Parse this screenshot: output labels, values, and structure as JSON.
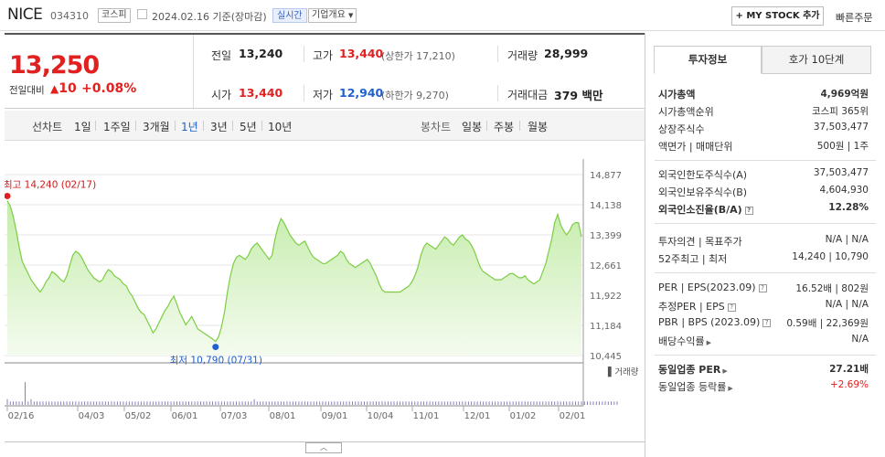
{
  "header": {
    "name": "NICE",
    "code": "034310",
    "market": "코스피",
    "date_text": "2024.02.16 기준(장마감)",
    "live_label": "실시간",
    "company_label": "기업개요",
    "mystock_label": "+ MY STOCK 추가",
    "quick_order": "빠른주문"
  },
  "price": {
    "current": "13,250",
    "change_label": "전일대비",
    "change_arrow": "▲",
    "change_value": "10",
    "change_pct": "+0.08%"
  },
  "summary": {
    "prev_label": "전일",
    "prev": "13,240",
    "high_label": "고가",
    "high": "13,440",
    "upper_label": "(상한가",
    "upper": "17,210)",
    "volume_label": "거래량",
    "volume": "28,999",
    "open_label": "시가",
    "open": "13,440",
    "low_label": "저가",
    "low": "12,940",
    "lower_label": "(하한가",
    "lower": "9,270)",
    "amount_label": "거래대금",
    "amount": "379",
    "amount_unit": "백만"
  },
  "tabs": {
    "line_label": "선차트",
    "periods": [
      "1일",
      "1주일",
      "3개월",
      "1년",
      "3년",
      "5년",
      "10년"
    ],
    "active": "1년",
    "candle_label": "봉차트",
    "candle_periods": [
      "일봉",
      "주봉",
      "월봉"
    ]
  },
  "chart_data": {
    "type": "area",
    "x_ticks": [
      "02/16",
      "04/03",
      "05/02",
      "06/01",
      "07/03",
      "08/01",
      "09/01",
      "10/04",
      "11/01",
      "12/01",
      "01/02",
      "02/01"
    ],
    "y_ticks": [
      14877,
      14138,
      13399,
      12661,
      11922,
      11184,
      10445
    ],
    "ylim": [
      10445,
      14877
    ],
    "high_label": "최고 14,240 (02/17)",
    "low_label": "최저 10,790 (07/31)",
    "volume_label": "거래량",
    "values": [
      14240,
      14100,
      13850,
      13500,
      13100,
      12750,
      12600,
      12450,
      12300,
      12200,
      12100,
      12000,
      12100,
      12250,
      12350,
      12500,
      12450,
      12380,
      12300,
      12250,
      12400,
      12650,
      12900,
      13000,
      12950,
      12850,
      12700,
      12550,
      12450,
      12350,
      12300,
      12250,
      12300,
      12450,
      12550,
      12500,
      12400,
      12350,
      12300,
      12200,
      12150,
      12000,
      11900,
      11750,
      11600,
      11500,
      11450,
      11300,
      11150,
      11000,
      11100,
      11250,
      11400,
      11550,
      11650,
      11800,
      11900,
      11700,
      11500,
      11350,
      11200,
      11300,
      11400,
      11250,
      11100,
      11050,
      11000,
      10950,
      10900,
      10850,
      10790,
      10900,
      11150,
      11500,
      12000,
      12400,
      12700,
      12850,
      12900,
      12850,
      12800,
      12900,
      13050,
      13150,
      13200,
      13100,
      13000,
      12900,
      12800,
      12900,
      13300,
      13600,
      13800,
      13700,
      13550,
      13400,
      13300,
      13200,
      13150,
      13200,
      13250,
      13100,
      12950,
      12850,
      12800,
      12750,
      12700,
      12700,
      12750,
      12800,
      12850,
      12900,
      13000,
      12950,
      12800,
      12700,
      12650,
      12600,
      12650,
      12700,
      12750,
      12800,
      12700,
      12550,
      12400,
      12200,
      12050,
      12000,
      12000,
      12000,
      12000,
      12000,
      12000,
      12050,
      12100,
      12150,
      12250,
      12400,
      12600,
      12900,
      13100,
      13200,
      13150,
      13100,
      13050,
      13150,
      13250,
      13350,
      13300,
      13200,
      13150,
      13250,
      13350,
      13400,
      13300,
      13250,
      13150,
      13000,
      12800,
      12600,
      12500,
      12450,
      12400,
      12350,
      12300,
      12300,
      12300,
      12350,
      12400,
      12450,
      12450,
      12400,
      12350,
      12350,
      12400,
      12300,
      12250,
      12200,
      12250,
      12300,
      12500,
      12700,
      13000,
      13300,
      13700,
      13900,
      13650,
      13500,
      13400,
      13500,
      13650,
      13700,
      13700,
      13350
    ],
    "volume_values": [
      2,
      1,
      1,
      1,
      1,
      1,
      9,
      1,
      2,
      1,
      1,
      1,
      1,
      1,
      1,
      1,
      1,
      1,
      1,
      1,
      1,
      1,
      1,
      1,
      1,
      1,
      1,
      1,
      1,
      1,
      1,
      1,
      1,
      1,
      1,
      1,
      1,
      1,
      1,
      1,
      1,
      1,
      1,
      1,
      1,
      1,
      1,
      1,
      1,
      1,
      1,
      1,
      1,
      1,
      1,
      1,
      1,
      1,
      1,
      1,
      1,
      1,
      1,
      1,
      1,
      1,
      1,
      1,
      1,
      1,
      1,
      1,
      1,
      1,
      1,
      1,
      1,
      1,
      1,
      1,
      1,
      1,
      1,
      2,
      1,
      1,
      1,
      1,
      1,
      1,
      1,
      1,
      1,
      1,
      1,
      1,
      1,
      1,
      1,
      1,
      1,
      1,
      1,
      1,
      1,
      1,
      1,
      1,
      1,
      1,
      1,
      1,
      1,
      1,
      1,
      1,
      1,
      1,
      1,
      1,
      1,
      1,
      1,
      1,
      1,
      1,
      1,
      1,
      1,
      1,
      1,
      1,
      1,
      1,
      1,
      1,
      1,
      1,
      1,
      1,
      1,
      1,
      1,
      1,
      1,
      1,
      1,
      1,
      1,
      1,
      1,
      1,
      1,
      1,
      1,
      1,
      1,
      1,
      1,
      1,
      1,
      1,
      1,
      1,
      1,
      1,
      1,
      1,
      1,
      1,
      1,
      1,
      1,
      1,
      1,
      1,
      1,
      1,
      1,
      1,
      1,
      1,
      1,
      1,
      1,
      1,
      1,
      1,
      1,
      1,
      1,
      1,
      1,
      1,
      1,
      1,
      1,
      1,
      1,
      1,
      1,
      1,
      1,
      1,
      1,
      1
    ]
  },
  "side": {
    "tab_invest": "투자정보",
    "tab_hoga": "호가 10단계",
    "rows1": [
      {
        "l": "시가총액",
        "r": "4,969억원",
        "bold": true
      },
      {
        "l": "시가총액순위",
        "r": "코스피 365위"
      },
      {
        "l": "상장주식수",
        "r": "37,503,477"
      },
      {
        "l": "액면가 | 매매단위",
        "r": "500원 | 1주"
      }
    ],
    "rows2": [
      {
        "l": "외국인한도주식수(A)",
        "r": "37,503,477"
      },
      {
        "l": "외국인보유주식수(B)",
        "r": "4,604,930"
      },
      {
        "l": "외국인소진율(B/A)",
        "r": "12.28%",
        "bold": true
      }
    ],
    "rows3": [
      {
        "l": "투자의견 | 목표주가",
        "r": "N/A | N/A"
      },
      {
        "l": "52주최고 | 최저",
        "r": "14,240 | 10,790"
      }
    ],
    "rows4": [
      {
        "l": "PER | EPS(2023.09)",
        "r": "16.52배 | 802원"
      },
      {
        "l": "추정PER | EPS",
        "r": "N/A | N/A"
      },
      {
        "l": "PBR | BPS (2023.09)",
        "r": "0.59배 | 22,369원"
      },
      {
        "l": "배당수익률",
        "r": "N/A"
      }
    ],
    "rows5": [
      {
        "l": "동일업종 PER",
        "r": "27.21배",
        "bold": true
      },
      {
        "l": "동일업종 등락률",
        "r": "+2.69%",
        "red": true
      }
    ]
  },
  "footer": {
    "toggle": "︿"
  }
}
